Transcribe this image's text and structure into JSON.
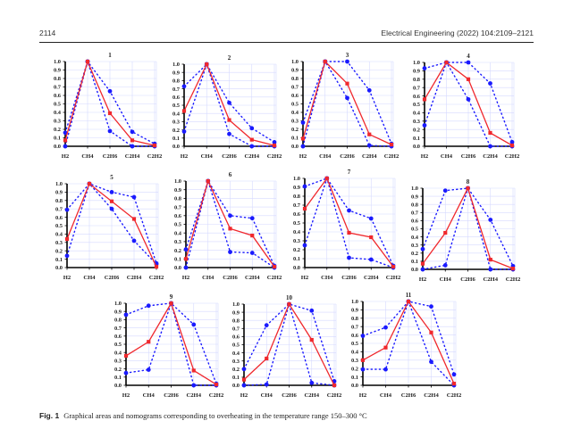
{
  "page": {
    "page_number": "2114",
    "journal": "Electrical Engineering (2022) 104:2109–2121"
  },
  "caption": {
    "label": "Fig. 1",
    "text": "Graphical areas and nomograms corresponding to overheating in the temperature range 150–300 °C"
  },
  "colors": {
    "nomogram": "#f0282d",
    "area_bounds": "#1a1aff",
    "grid": "#d6d9ff",
    "axis": "#000000"
  },
  "chart_data": [
    {
      "type": "line",
      "title": "1",
      "categories": [
        "H2",
        "CH4",
        "C2H6",
        "C2H4",
        "C2H2"
      ],
      "ylim": [
        0,
        1
      ],
      "yticks": [
        "0.0",
        "0.1",
        "0.2",
        "0.3",
        "0.4",
        "0.5",
        "0.6",
        "0.7",
        "0.8",
        "0.9",
        "1.0"
      ],
      "grid": true,
      "series": [
        {
          "name": "upper-bound",
          "style": "dotted",
          "values": [
            0.16,
            1.0,
            0.65,
            0.17,
            0.03
          ]
        },
        {
          "name": "lower-bound",
          "style": "dotted",
          "values": [
            0.0,
            1.0,
            0.18,
            0.0,
            0.0
          ]
        },
        {
          "name": "nomogram",
          "style": "solid",
          "values": [
            0.07,
            1.0,
            0.39,
            0.07,
            0.01
          ]
        }
      ]
    },
    {
      "type": "line",
      "title": "2",
      "categories": [
        "H2",
        "CH4",
        "C2H6",
        "C2H4",
        "C2H2"
      ],
      "ylim": [
        0,
        1
      ],
      "yticks": [
        "0.0",
        "0.1",
        "0.2",
        "0.3",
        "0.4",
        "0.5",
        "0.6",
        "0.7",
        "0.8",
        "0.9",
        "1.0"
      ],
      "grid": true,
      "series": [
        {
          "name": "upper-bound",
          "style": "dotted",
          "values": [
            0.73,
            1.0,
            0.53,
            0.22,
            0.05
          ]
        },
        {
          "name": "lower-bound",
          "style": "dotted",
          "values": [
            0.18,
            1.0,
            0.15,
            0.0,
            0.0
          ]
        },
        {
          "name": "nomogram",
          "style": "solid",
          "values": [
            0.43,
            1.0,
            0.32,
            0.08,
            0.01
          ]
        }
      ]
    },
    {
      "type": "line",
      "title": "3",
      "categories": [
        "H2",
        "CH4",
        "C2H6",
        "C2H4",
        "C2H2"
      ],
      "ylim": [
        0,
        1
      ],
      "yticks": [
        "0.0",
        "0.1",
        "0.2",
        "0.3",
        "0.4",
        "0.5",
        "0.6",
        "0.7",
        "0.8",
        "0.9",
        "1.0"
      ],
      "grid": true,
      "series": [
        {
          "name": "upper-bound",
          "style": "dotted",
          "values": [
            0.28,
            1.0,
            1.0,
            0.66,
            0.03
          ]
        },
        {
          "name": "lower-bound",
          "style": "dotted",
          "values": [
            0.0,
            1.0,
            0.57,
            0.01,
            0.0
          ]
        },
        {
          "name": "nomogram",
          "style": "solid",
          "values": [
            0.09,
            1.0,
            0.74,
            0.14,
            0.02
          ]
        }
      ]
    },
    {
      "type": "line",
      "title": "4",
      "categories": [
        "H2",
        "CH4",
        "C2H6",
        "C2H4",
        "C2H2"
      ],
      "ylim": [
        0,
        1
      ],
      "yticks": [
        "0.0",
        "0.1",
        "0.2",
        "0.3",
        "0.4",
        "0.5",
        "0.6",
        "0.7",
        "0.8",
        "0.9",
        "1.0"
      ],
      "grid": true,
      "series": [
        {
          "name": "upper-bound",
          "style": "dotted",
          "values": [
            0.93,
            1.0,
            1.0,
            0.75,
            0.05
          ]
        },
        {
          "name": "lower-bound",
          "style": "dotted",
          "values": [
            0.25,
            1.0,
            0.56,
            0.0,
            0.0
          ]
        },
        {
          "name": "nomogram",
          "style": "solid",
          "values": [
            0.56,
            1.0,
            0.8,
            0.16,
            0.01
          ]
        }
      ]
    },
    {
      "type": "line",
      "title": "5",
      "categories": [
        "H2",
        "CH4",
        "C2H6",
        "C2H4",
        "C2H2"
      ],
      "ylim": [
        0,
        1
      ],
      "yticks": [
        "0.0",
        "0.1",
        "0.2",
        "0.3",
        "0.4",
        "0.5",
        "0.6",
        "0.7",
        "0.8",
        "0.9",
        "1.0"
      ],
      "grid": true,
      "series": [
        {
          "name": "upper-bound",
          "style": "dotted",
          "values": [
            0.69,
            1.0,
            0.9,
            0.84,
            0.05
          ]
        },
        {
          "name": "lower-bound",
          "style": "dotted",
          "values": [
            0.14,
            1.0,
            0.7,
            0.32,
            0.04
          ]
        },
        {
          "name": "nomogram",
          "style": "solid",
          "values": [
            0.34,
            1.0,
            0.79,
            0.58,
            0.01
          ]
        }
      ]
    },
    {
      "type": "line",
      "title": "6",
      "categories": [
        "H2",
        "CH4",
        "C2H6",
        "C2H4",
        "C2H2"
      ],
      "ylim": [
        0,
        1
      ],
      "yticks": [
        "0.0",
        "0.1",
        "0.2",
        "0.3",
        "0.4",
        "0.5",
        "0.6",
        "0.7",
        "0.8",
        "0.9",
        "1.0"
      ],
      "grid": true,
      "series": [
        {
          "name": "upper-bound",
          "style": "dotted",
          "values": [
            0.21,
            1.0,
            0.6,
            0.57,
            0.02
          ]
        },
        {
          "name": "lower-bound",
          "style": "dotted",
          "values": [
            0.0,
            1.0,
            0.18,
            0.17,
            0.0
          ]
        },
        {
          "name": "nomogram",
          "style": "solid",
          "values": [
            0.1,
            1.0,
            0.45,
            0.37,
            0.01
          ]
        }
      ]
    },
    {
      "type": "line",
      "title": "7",
      "categories": [
        "H2",
        "CH4",
        "C2H6",
        "C2H4",
        "C2H2"
      ],
      "ylim": [
        0,
        1
      ],
      "yticks": [
        "0.0",
        "0.1",
        "0.2",
        "0.3",
        "0.4",
        "0.5",
        "0.6",
        "0.7",
        "0.8",
        "0.9",
        "1.0"
      ],
      "grid": true,
      "series": [
        {
          "name": "upper-bound",
          "style": "dotted",
          "values": [
            0.91,
            1.0,
            0.64,
            0.55,
            0.02
          ]
        },
        {
          "name": "lower-bound",
          "style": "dotted",
          "values": [
            0.25,
            1.0,
            0.11,
            0.09,
            0.0
          ]
        },
        {
          "name": "nomogram",
          "style": "solid",
          "values": [
            0.66,
            1.0,
            0.39,
            0.34,
            0.01
          ]
        }
      ]
    },
    {
      "type": "line",
      "title": "8",
      "categories": [
        "H2",
        "CH4",
        "C2H6",
        "C2H4",
        "C2H2"
      ],
      "ylim": [
        0,
        1
      ],
      "yticks": [
        "0.0",
        "0.1",
        "0.2",
        "0.3",
        "0.4",
        "0.5",
        "0.6",
        "0.7",
        "0.8",
        "0.9",
        "1.0"
      ],
      "grid": true,
      "series": [
        {
          "name": "upper-bound",
          "style": "dotted",
          "values": [
            0.25,
            0.97,
            1.0,
            0.61,
            0.04
          ]
        },
        {
          "name": "lower-bound",
          "style": "dotted",
          "values": [
            0.0,
            0.05,
            1.0,
            0.0,
            0.0
          ]
        },
        {
          "name": "nomogram",
          "style": "solid",
          "values": [
            0.07,
            0.45,
            1.0,
            0.12,
            0.01
          ]
        }
      ]
    },
    {
      "type": "line",
      "title": "9",
      "categories": [
        "H2",
        "CH4",
        "C2H6",
        "C2H4",
        "C2H2"
      ],
      "ylim": [
        0,
        1
      ],
      "yticks": [
        "0.0",
        "0.1",
        "0.2",
        "0.3",
        "0.4",
        "0.5",
        "0.6",
        "0.7",
        "0.8",
        "0.9",
        "1.0"
      ],
      "grid": true,
      "series": [
        {
          "name": "upper-bound",
          "style": "dotted",
          "values": [
            0.86,
            0.97,
            1.0,
            0.74,
            0.02
          ]
        },
        {
          "name": "lower-bound",
          "style": "dotted",
          "values": [
            0.15,
            0.19,
            1.0,
            0.0,
            0.0
          ]
        },
        {
          "name": "nomogram",
          "style": "solid",
          "values": [
            0.36,
            0.53,
            1.0,
            0.18,
            0.01
          ]
        }
      ]
    },
    {
      "type": "line",
      "title": "10",
      "categories": [
        "H2",
        "CH4",
        "C2H6",
        "C2H4",
        "C2H2"
      ],
      "ylim": [
        0,
        1
      ],
      "yticks": [
        "0.0",
        "0.1",
        "0.2",
        "0.3",
        "0.4",
        "0.5",
        "0.6",
        "0.7",
        "0.8",
        "0.9",
        "1.0"
      ],
      "grid": true,
      "series": [
        {
          "name": "upper-bound",
          "style": "dotted",
          "values": [
            0.2,
            0.74,
            1.0,
            0.92,
            0.05
          ]
        },
        {
          "name": "lower-bound",
          "style": "dotted",
          "values": [
            0.0,
            0.01,
            1.0,
            0.03,
            0.0
          ]
        },
        {
          "name": "nomogram",
          "style": "solid",
          "values": [
            0.07,
            0.33,
            1.0,
            0.56,
            0.0
          ]
        }
      ]
    },
    {
      "type": "line",
      "title": "11",
      "categories": [
        "H2",
        "CH4",
        "C2H6",
        "C2H4",
        "C2H2"
      ],
      "ylim": [
        0,
        1
      ],
      "yticks": [
        "0.0",
        "0.1",
        "0.2",
        "0.3",
        "0.4",
        "0.5",
        "0.6",
        "0.7",
        "0.8",
        "0.9",
        "1.0"
      ],
      "grid": true,
      "series": [
        {
          "name": "upper-bound",
          "style": "dotted",
          "values": [
            0.59,
            0.69,
            1.0,
            0.94,
            0.13
          ]
        },
        {
          "name": "lower-bound",
          "style": "dotted",
          "values": [
            0.19,
            0.19,
            1.0,
            0.28,
            0.0
          ]
        },
        {
          "name": "nomogram",
          "style": "solid",
          "values": [
            0.3,
            0.45,
            1.0,
            0.63,
            0.02
          ]
        }
      ]
    }
  ]
}
